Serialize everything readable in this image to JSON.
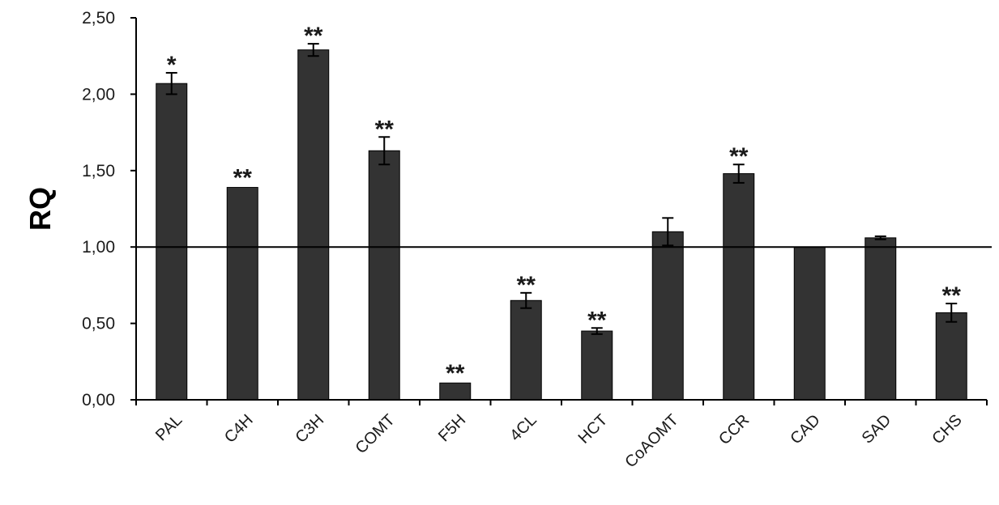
{
  "chart_data": {
    "type": "bar",
    "title": "",
    "xlabel": "",
    "ylabel": "RQ",
    "ylim": [
      0,
      2.5
    ],
    "yticks": [
      0,
      0.5,
      1.0,
      1.5,
      2.0,
      2.5
    ],
    "ytick_labels": [
      "0,00",
      "0,50",
      "1,00",
      "1,50",
      "2,00",
      "2,50"
    ],
    "reference_line": 1.0,
    "grid": false,
    "categories": [
      "PAL",
      "C4H",
      "C3H",
      "COMT",
      "F5H",
      "4CL",
      "HCT",
      "CoAOMT",
      "CCR",
      "CAD",
      "SAD",
      "CHS"
    ],
    "values": [
      2.07,
      1.39,
      2.29,
      1.63,
      0.11,
      0.65,
      0.45,
      1.1,
      1.48,
      1.0,
      1.06,
      0.57
    ],
    "errors": [
      0.07,
      0.0,
      0.04,
      0.09,
      0.0,
      0.05,
      0.02,
      0.09,
      0.06,
      0.0,
      0.01,
      0.06
    ],
    "significance": [
      "*",
      "**",
      "**",
      "**",
      "**",
      "**",
      "**",
      "",
      "**",
      "",
      "",
      "**"
    ],
    "colors": {
      "bar": "#333333",
      "bar_stroke": "#000000",
      "axis": "#000000"
    }
  }
}
